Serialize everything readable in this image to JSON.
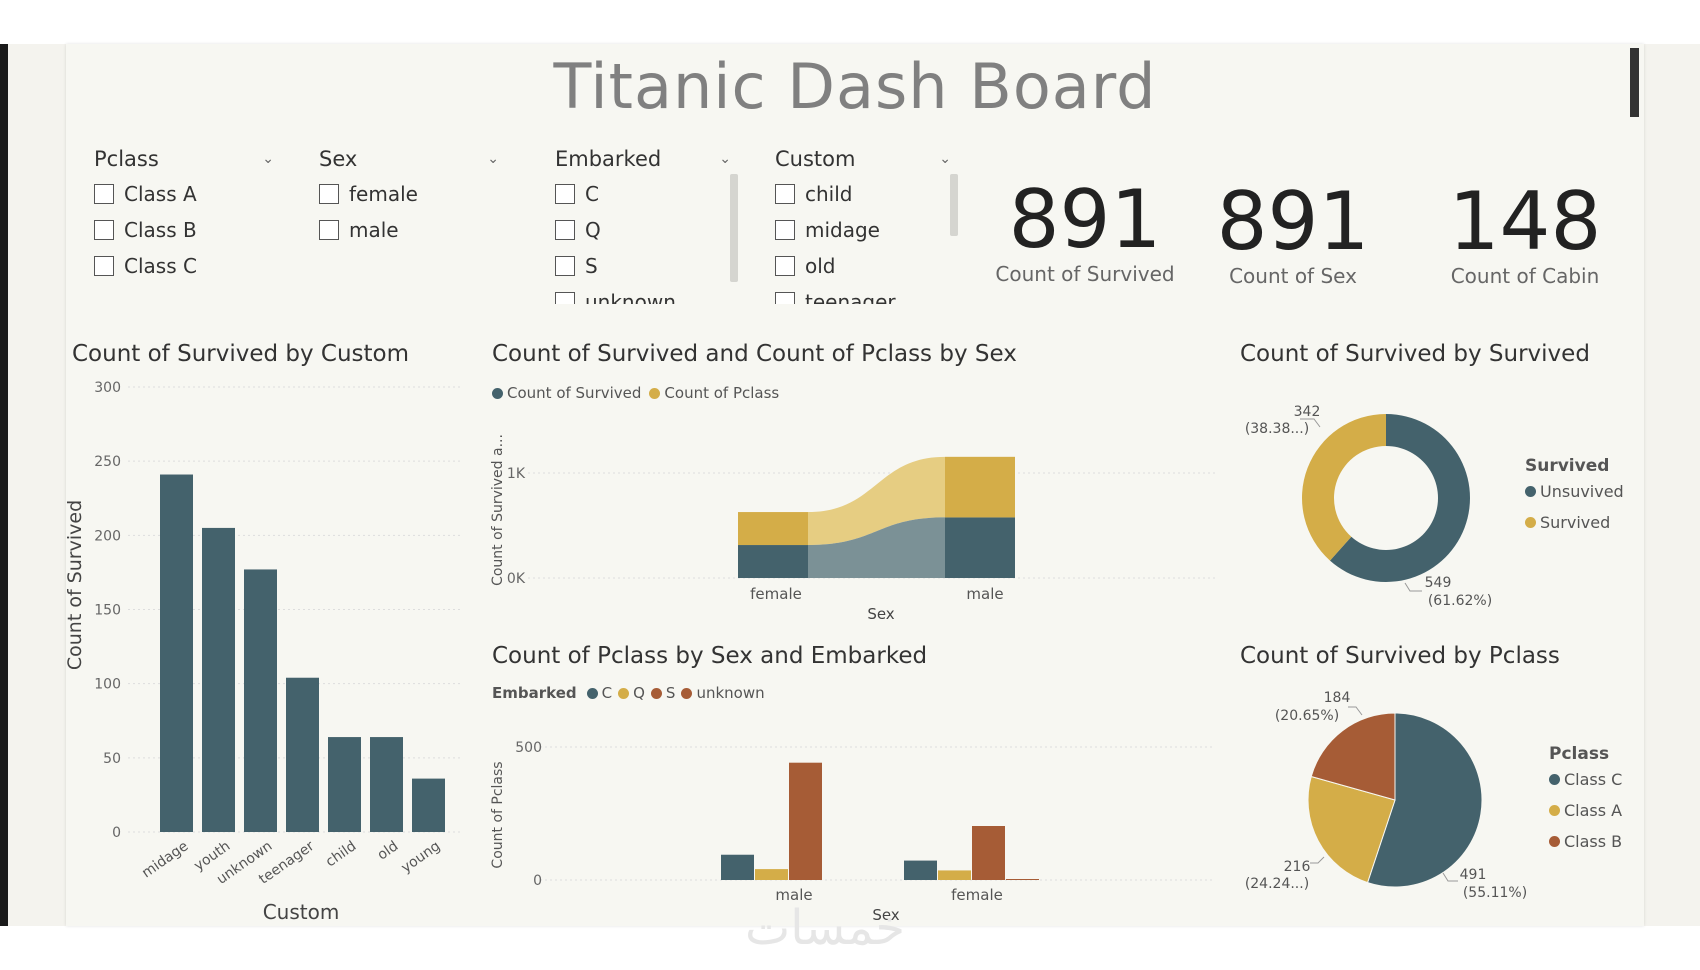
{
  "title": "Titanic Dash Board",
  "watermark": "خمسات",
  "colors": {
    "teal": "#44626c",
    "gold": "#d4ad48",
    "rust": "#a65c36",
    "lightgold": "#e6cd82",
    "lightteal": "#7b9196"
  },
  "slicers": [
    {
      "title": "Pclass",
      "options": [
        "Class A",
        "Class B",
        "Class C"
      ]
    },
    {
      "title": "Sex",
      "options": [
        "female",
        "male"
      ]
    },
    {
      "title": "Embarked",
      "options": [
        "C",
        "Q",
        "S",
        "unknown"
      ]
    },
    {
      "title": "Custom",
      "options": [
        "child",
        "midage",
        "old",
        "teenager"
      ]
    }
  ],
  "cards": [
    {
      "value": "891",
      "label": "Count of Survived"
    },
    {
      "value": "891",
      "label": "Count of Sex"
    },
    {
      "value": "148",
      "label": "Count of Cabin"
    }
  ],
  "charts": {
    "by_custom": {
      "title": "Count of Survived by Custom",
      "xlabel": "Custom",
      "ylabel": "Count of Survived",
      "y_ticks": [
        "0",
        "50",
        "100",
        "150",
        "200",
        "250",
        "300"
      ]
    },
    "by_sex": {
      "title": "Count of Survived and Count of Pclass by Sex",
      "legend": [
        "Count of Survived",
        "Count of Pclass"
      ],
      "xlabel": "Sex",
      "ylabel": "Count of Survived a...",
      "y_ticks": [
        "0K",
        "1K"
      ],
      "categories": [
        "female",
        "male"
      ]
    },
    "by_embarked": {
      "title": "Count of Pclass by Sex and Embarked",
      "legend_title": "Embarked",
      "legend": [
        "C",
        "Q",
        "S",
        "unknown"
      ],
      "xlabel": "Sex",
      "ylabel": "Count of Pclass",
      "y_ticks": [
        "0",
        "500"
      ],
      "categories": [
        "male",
        "female"
      ]
    },
    "by_survived": {
      "title": "Count of Survived by Survived",
      "legend_title": "Survived",
      "legend": [
        "Unsuvived",
        "Survived"
      ],
      "labels": [
        {
          "value": "342",
          "pct": "(38.38...)"
        },
        {
          "value": "549",
          "pct": "(61.62%)"
        }
      ]
    },
    "by_pclass": {
      "title": "Count of Survived by Pclass",
      "legend_title": "Pclass",
      "legend": [
        "Class C",
        "Class A",
        "Class B"
      ],
      "labels": [
        {
          "value": "184",
          "pct": "(20.65%)"
        },
        {
          "value": "216",
          "pct": "(24.24...)"
        },
        {
          "value": "491",
          "pct": "(55.11%)"
        }
      ]
    }
  },
  "chart_data": [
    {
      "type": "bar",
      "title": "Count of Survived by Custom",
      "xlabel": "Custom",
      "ylabel": "Count of Survived",
      "categories": [
        "midage",
        "youth",
        "unknown",
        "teenager",
        "child",
        "old",
        "young"
      ],
      "values": [
        241,
        205,
        177,
        104,
        64,
        64,
        36
      ],
      "ylim": [
        0,
        300
      ]
    },
    {
      "type": "area",
      "title": "Count of Survived and Count of Pclass by Sex",
      "categories": [
        "female",
        "male"
      ],
      "series": [
        {
          "name": "Count of Survived",
          "values": [
            314,
            577
          ]
        },
        {
          "name": "Count of Pclass",
          "values": [
            314,
            577
          ]
        }
      ],
      "ylim": [
        0,
        1200
      ]
    },
    {
      "type": "bar",
      "title": "Count of Pclass by Sex and Embarked",
      "categories": [
        "male",
        "female"
      ],
      "series": [
        {
          "name": "C",
          "values": [
            95,
            73
          ]
        },
        {
          "name": "Q",
          "values": [
            41,
            36
          ]
        },
        {
          "name": "S",
          "values": [
            441,
            203
          ]
        },
        {
          "name": "unknown",
          "values": [
            0,
            2
          ]
        }
      ],
      "ylim": [
        0,
        500
      ]
    },
    {
      "type": "pie",
      "title": "Count of Survived by Survived",
      "categories": [
        "Unsuvived",
        "Survived"
      ],
      "values": [
        549,
        342
      ]
    },
    {
      "type": "pie",
      "title": "Count of Survived by Pclass",
      "categories": [
        "Class C",
        "Class A",
        "Class B"
      ],
      "values": [
        491,
        216,
        184
      ]
    }
  ]
}
